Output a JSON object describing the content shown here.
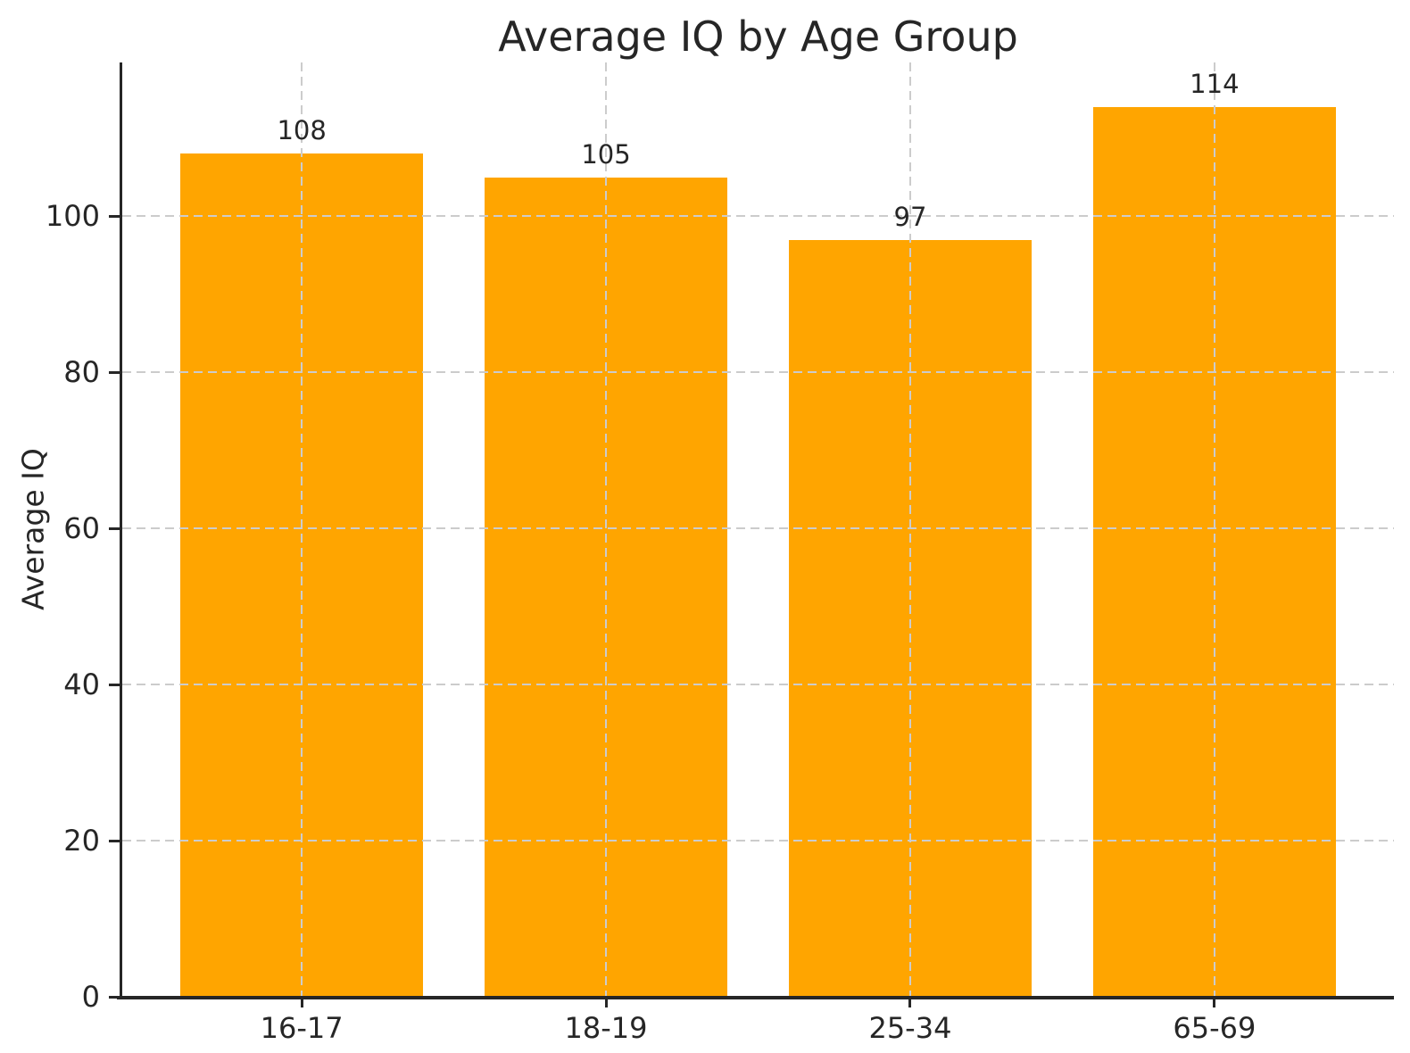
{
  "figure": {
    "background": "#ffffff"
  },
  "chart_data": {
    "type": "bar",
    "title": "Average IQ by Age Group",
    "xlabel": "",
    "ylabel": "Average IQ",
    "categories": [
      "16-17",
      "18-19",
      "25-34",
      "65-69"
    ],
    "values": [
      108,
      105,
      97,
      114
    ],
    "bar_labels": [
      "108",
      "105",
      "97",
      "114"
    ],
    "ytick_labels": [
      "0",
      "20",
      "40",
      "60",
      "80",
      "100"
    ],
    "ytick_values": [
      0,
      20,
      40,
      60,
      80,
      100
    ],
    "ylim": [
      0,
      119.7
    ],
    "grid": "dashed, horizontal and vertical, drawn above bars",
    "legend": "none",
    "bar_color": "#FFA500",
    "grid_color": "#cccccc",
    "text_color": "#262626",
    "spine_color": "#262626"
  }
}
